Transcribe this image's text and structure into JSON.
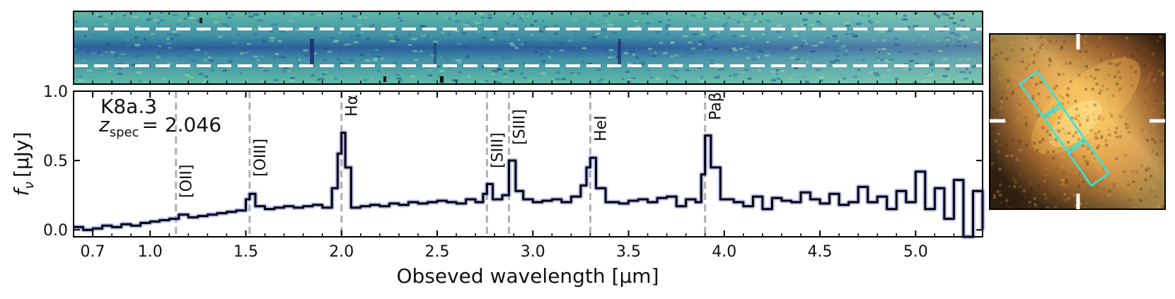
{
  "chart_data": {
    "type": "line",
    "object_name": "K8a.3",
    "redshift_label": "z",
    "redshift_subscript": "spec",
    "redshift_value": "= 2.046",
    "xlabel": "Obseved wavelength [μm]",
    "ylabel_symbol": "f",
    "ylabel_subscript": "ν",
    "ylabel_unit": "[μJy]",
    "xlim": [
      0.6,
      5.35
    ],
    "ylim": [
      -0.05,
      1.0
    ],
    "xtick_values": [
      0.7,
      1.0,
      1.5,
      2.0,
      2.5,
      3.0,
      3.5,
      4.0,
      4.5,
      5.0
    ],
    "xtick_labels": [
      "0.7",
      "1.0",
      "1.5",
      "2.0",
      "2.5",
      "3.0",
      "3.5",
      "4.0",
      "4.5",
      "5.0"
    ],
    "ytick_values": [
      0.0,
      0.5,
      1.0
    ],
    "ytick_labels": [
      "0.0",
      "0.5",
      "1.0"
    ],
    "emission_lines": [
      {
        "name": "[OII]",
        "wavelength": 1.135
      },
      {
        "name": "[OIII]",
        "wavelength": 1.52
      },
      {
        "name": "Hα",
        "wavelength": 2.0
      },
      {
        "name": "[SIII]",
        "wavelength": 2.76
      },
      {
        "name": "[SIII]",
        "wavelength": 2.875
      },
      {
        "name": "HeI",
        "wavelength": 3.3
      },
      {
        "name": "Paβ",
        "wavelength": 3.9
      }
    ],
    "spectrum": {
      "x": [
        0.6,
        0.65,
        0.7,
        0.75,
        0.8,
        0.85,
        0.9,
        0.95,
        1.0,
        1.05,
        1.1,
        1.15,
        1.2,
        1.25,
        1.3,
        1.35,
        1.4,
        1.45,
        1.5,
        1.52,
        1.55,
        1.6,
        1.65,
        1.7,
        1.75,
        1.8,
        1.85,
        1.9,
        1.95,
        1.98,
        2.0,
        2.02,
        2.05,
        2.1,
        2.15,
        2.2,
        2.25,
        2.3,
        2.35,
        2.4,
        2.45,
        2.5,
        2.55,
        2.6,
        2.65,
        2.7,
        2.74,
        2.76,
        2.79,
        2.84,
        2.875,
        2.91,
        2.95,
        3.0,
        3.05,
        3.1,
        3.15,
        3.2,
        3.25,
        3.28,
        3.3,
        3.33,
        3.38,
        3.45,
        3.5,
        3.55,
        3.6,
        3.65,
        3.7,
        3.75,
        3.8,
        3.85,
        3.88,
        3.9,
        3.93,
        3.98,
        4.05,
        4.1,
        4.15,
        4.2,
        4.25,
        4.3,
        4.35,
        4.4,
        4.45,
        4.5,
        4.55,
        4.6,
        4.65,
        4.7,
        4.75,
        4.8,
        4.85,
        4.9,
        4.95,
        5.0,
        5.05,
        5.1,
        5.15,
        5.2,
        5.25,
        5.3,
        5.35
      ],
      "y": [
        0.02,
        0.0,
        0.01,
        0.03,
        0.02,
        0.04,
        0.03,
        0.05,
        0.06,
        0.07,
        0.08,
        0.11,
        0.09,
        0.1,
        0.11,
        0.12,
        0.13,
        0.14,
        0.22,
        0.26,
        0.17,
        0.15,
        0.16,
        0.17,
        0.16,
        0.17,
        0.18,
        0.16,
        0.3,
        0.55,
        0.7,
        0.45,
        0.16,
        0.17,
        0.18,
        0.17,
        0.19,
        0.18,
        0.2,
        0.19,
        0.2,
        0.21,
        0.2,
        0.19,
        0.22,
        0.2,
        0.26,
        0.33,
        0.22,
        0.25,
        0.5,
        0.28,
        0.22,
        0.2,
        0.21,
        0.22,
        0.2,
        0.24,
        0.32,
        0.45,
        0.52,
        0.3,
        0.2,
        0.19,
        0.21,
        0.22,
        0.2,
        0.23,
        0.24,
        0.17,
        0.22,
        0.2,
        0.4,
        0.68,
        0.45,
        0.22,
        0.2,
        0.17,
        0.24,
        0.15,
        0.23,
        0.21,
        0.2,
        0.27,
        0.22,
        0.19,
        0.26,
        0.18,
        0.2,
        0.31,
        0.2,
        0.24,
        0.15,
        0.28,
        0.2,
        0.42,
        0.15,
        0.3,
        0.08,
        0.36,
        -0.05,
        0.28,
        0.0
      ]
    }
  },
  "colors": {
    "spectrum": "#000000",
    "error_band": "#8c8cf0",
    "vline": "#b0b0b0",
    "slit_box": "#2ee6e6",
    "aperture_dash": "#ffffff"
  }
}
